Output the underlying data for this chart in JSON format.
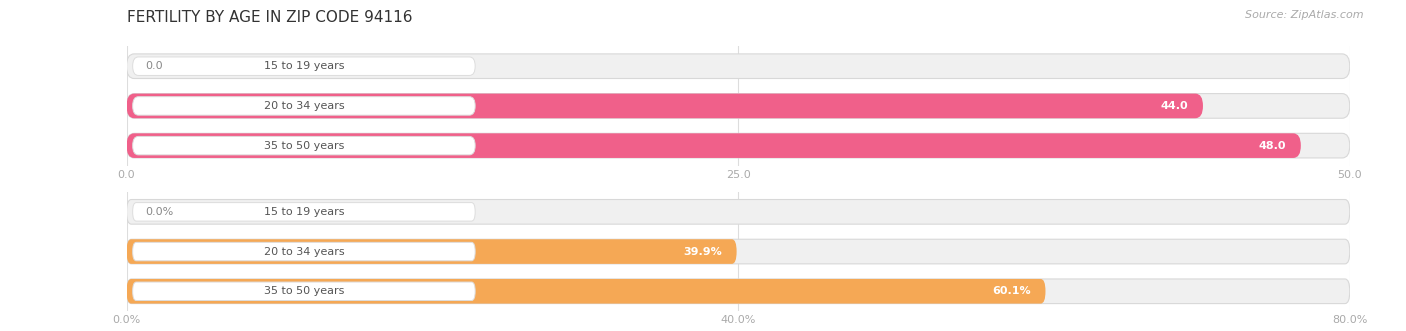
{
  "title": "FERTILITY BY AGE IN ZIP CODE 94116",
  "source": "Source: ZipAtlas.com",
  "top_chart": {
    "categories": [
      "15 to 19 years",
      "20 to 34 years",
      "35 to 50 years"
    ],
    "values": [
      0.0,
      44.0,
      48.0
    ],
    "xlim": [
      0,
      50
    ],
    "xticks": [
      0.0,
      25.0,
      50.0
    ],
    "xtick_labels": [
      "0.0",
      "25.0",
      "50.0"
    ],
    "bar_color": "#F0608A",
    "bar_bg_color": "#F0F0F0",
    "bar_border_color": "#D8D8D8",
    "label_inside_color": "#FFFFFF",
    "label_outside_color": "#888888",
    "value_threshold": 5
  },
  "bottom_chart": {
    "categories": [
      "15 to 19 years",
      "20 to 34 years",
      "35 to 50 years"
    ],
    "values": [
      0.0,
      39.9,
      60.1
    ],
    "xlim": [
      0,
      80
    ],
    "xticks": [
      0.0,
      40.0,
      80.0
    ],
    "xtick_labels": [
      "0.0%",
      "40.0%",
      "80.0%"
    ],
    "bar_color": "#F5A855",
    "bar_bg_color": "#F0F0F0",
    "bar_border_color": "#D8D8D8",
    "label_inside_color": "#FFFFFF",
    "label_outside_color": "#888888",
    "value_threshold": 5,
    "value_suffix": "%"
  },
  "figsize": [
    14.06,
    3.31
  ],
  "dpi": 100,
  "bg_color": "#FFFFFF",
  "title_fontsize": 11,
  "source_fontsize": 8,
  "bar_height": 0.62,
  "label_fontsize": 8,
  "category_fontsize": 8,
  "tick_fontsize": 8,
  "pill_bg": "#FFFFFF",
  "pill_border": "#DDDDDD"
}
